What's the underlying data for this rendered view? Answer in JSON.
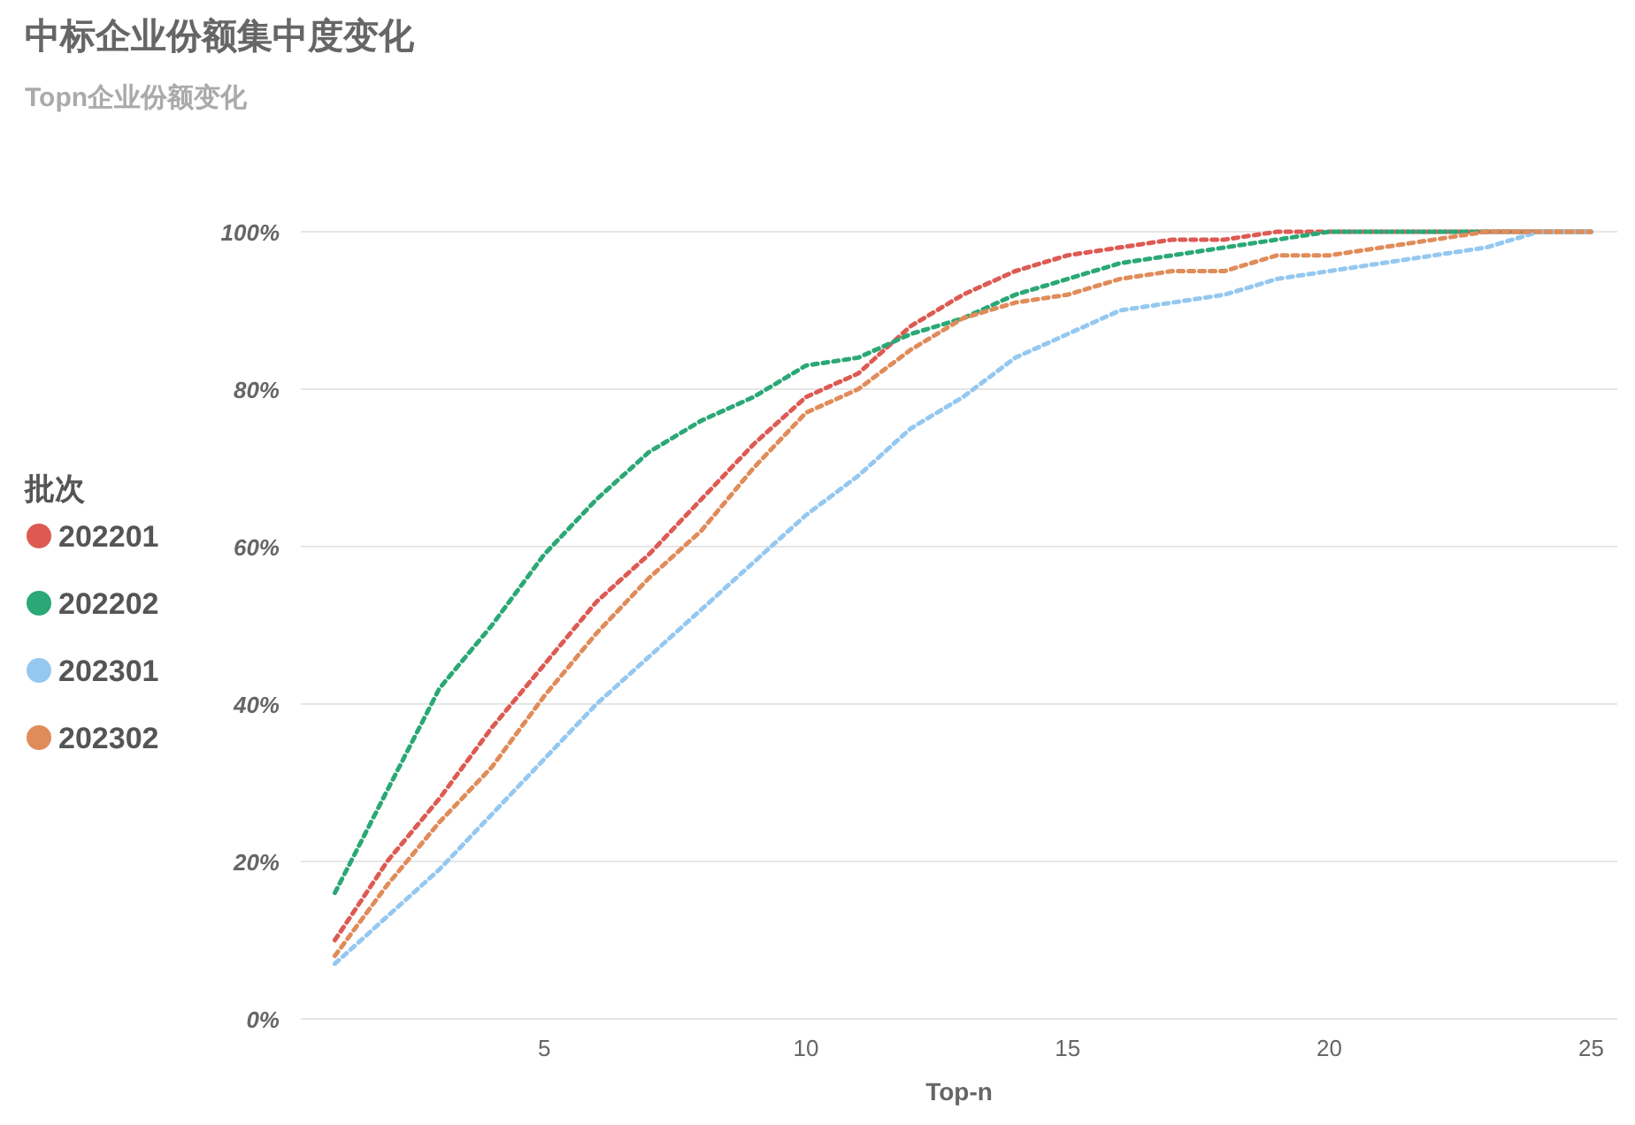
{
  "chart_data": {
    "type": "line",
    "title": "中标企业份额集中度变化",
    "subtitle": "Topn企业份额变化",
    "xlabel": "Top-n",
    "legend_title": "批次",
    "legend": "left",
    "grid": "y",
    "line_style": "dotted",
    "marker": "none",
    "x": [
      1,
      2,
      3,
      4,
      5,
      6,
      7,
      8,
      9,
      10,
      11,
      12,
      13,
      14,
      15,
      16,
      17,
      18,
      19,
      20,
      21,
      22,
      23,
      24,
      25
    ],
    "xlim": [
      0.35,
      25.5
    ],
    "xticks": [
      5,
      10,
      15,
      20,
      25
    ],
    "ylim": [
      0,
      100
    ],
    "yticks": [
      {
        "value": 0,
        "label": "0%"
      },
      {
        "value": 20,
        "label": "20%"
      },
      {
        "value": 40,
        "label": "40%"
      },
      {
        "value": 60,
        "label": "60%"
      },
      {
        "value": 80,
        "label": "80%"
      },
      {
        "value": 100,
        "label": "100%"
      }
    ],
    "series": [
      {
        "name": "202201",
        "color": "#dd5a53",
        "values": [
          10,
          20,
          28,
          37,
          45,
          53,
          59,
          66,
          73,
          79,
          82,
          88,
          92,
          95,
          97,
          98,
          99,
          99,
          100,
          100,
          100,
          100,
          100,
          100,
          100
        ]
      },
      {
        "name": "202202",
        "color": "#2aa876",
        "values": [
          16,
          29,
          42,
          50,
          59,
          66,
          72,
          76,
          79,
          83,
          84,
          87,
          89,
          92,
          94,
          96,
          97,
          98,
          99,
          100,
          100,
          100,
          100,
          100,
          100
        ]
      },
      {
        "name": "202301",
        "color": "#95c8f0",
        "values": [
          7,
          13,
          19,
          26,
          33,
          40,
          46,
          52,
          58,
          64,
          69,
          75,
          79,
          84,
          87,
          90,
          91,
          92,
          94,
          95,
          96,
          97,
          98,
          100,
          100
        ]
      },
      {
        "name": "202302",
        "color": "#e08c5a",
        "values": [
          8,
          17,
          25,
          32,
          41,
          49,
          56,
          62,
          70,
          77,
          80,
          85,
          89,
          91,
          92,
          94,
          95,
          95,
          97,
          97,
          98,
          99,
          100,
          100,
          100
        ]
      }
    ]
  }
}
